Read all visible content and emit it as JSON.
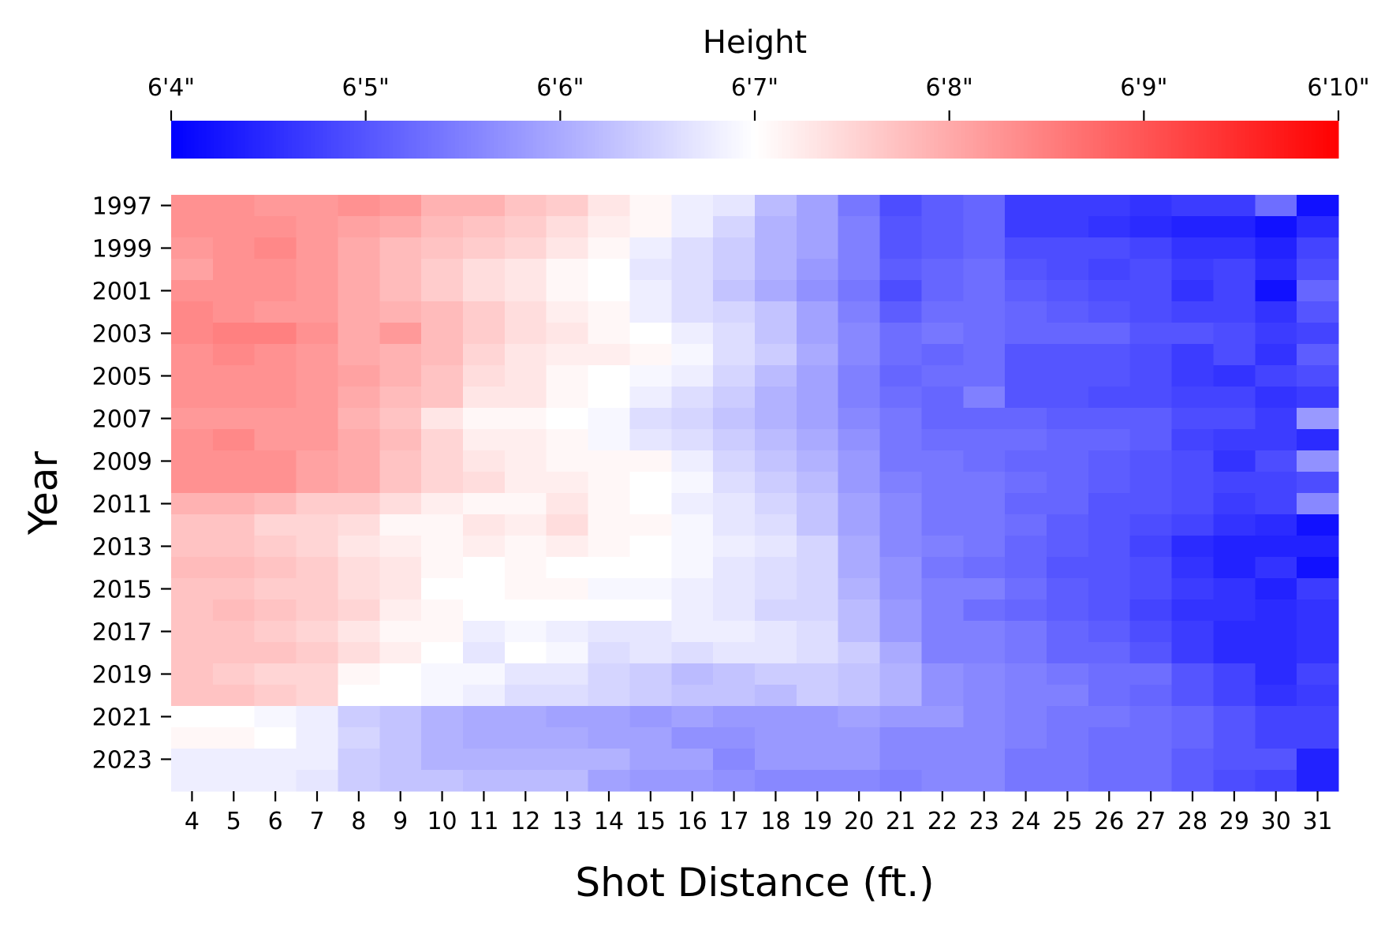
{
  "chart_data": {
    "type": "heatmap",
    "title": "",
    "xlabel": "Shot Distance (ft.)",
    "ylabel": "Year",
    "x": [
      4,
      5,
      6,
      7,
      8,
      9,
      10,
      11,
      12,
      13,
      14,
      15,
      16,
      17,
      18,
      19,
      20,
      21,
      22,
      23,
      24,
      25,
      26,
      27,
      28,
      29,
      30,
      31
    ],
    "x_ticks": [
      "4",
      "5",
      "6",
      "7",
      "8",
      "9",
      "10",
      "11",
      "12",
      "13",
      "14",
      "15",
      "16",
      "17",
      "18",
      "19",
      "20",
      "21",
      "22",
      "23",
      "24",
      "25",
      "26",
      "27",
      "28",
      "29",
      "30",
      "31"
    ],
    "y": [
      1997,
      1998,
      1999,
      2000,
      2001,
      2002,
      2003,
      2004,
      2005,
      2006,
      2007,
      2008,
      2009,
      2010,
      2011,
      2012,
      2013,
      2014,
      2015,
      2016,
      2017,
      2018,
      2019,
      2020,
      2021,
      2022,
      2023,
      2024
    ],
    "y_ticks": [
      "1997",
      "1999",
      "2001",
      "2003",
      "2005",
      "2007",
      "2009",
      "2011",
      "2013",
      "2015",
      "2017",
      "2019",
      "2021",
      "2023"
    ],
    "value_units": "height in inches",
    "colorbar": {
      "label": "Height",
      "min": 76,
      "center": 79,
      "max": 82,
      "ticks": [
        76,
        77,
        78,
        79,
        80,
        81,
        82
      ],
      "tick_labels": [
        "6'4\"",
        "6'5\"",
        "6'6\"",
        "6'7\"",
        "6'8\"",
        "6'9\"",
        "6'10\""
      ],
      "colors": {
        "low": "#0000ff",
        "mid": "#ffffff",
        "high": "#ff0000"
      }
    },
    "values": [
      [
        80.3,
        80.3,
        80.2,
        80.2,
        80.3,
        80.2,
        79.9,
        79.9,
        79.7,
        79.6,
        79.3,
        79.1,
        78.8,
        78.7,
        78.2,
        77.9,
        77.4,
        76.9,
        77.1,
        77.2,
        76.7,
        76.7,
        76.7,
        76.6,
        76.7,
        76.7,
        77.3,
        76.2
      ],
      [
        80.3,
        80.3,
        80.3,
        80.2,
        80.1,
        80.0,
        79.8,
        79.7,
        79.6,
        79.4,
        79.2,
        79.1,
        78.8,
        78.5,
        78.1,
        77.9,
        77.5,
        77.0,
        77.1,
        77.2,
        76.7,
        76.7,
        76.6,
        76.5,
        76.4,
        76.4,
        76.2,
        76.5
      ],
      [
        80.2,
        80.3,
        80.4,
        80.2,
        80.0,
        79.8,
        79.7,
        79.6,
        79.5,
        79.3,
        79.1,
        78.8,
        78.6,
        78.4,
        78.1,
        77.9,
        77.5,
        77.0,
        77.1,
        77.2,
        76.9,
        76.9,
        76.9,
        76.8,
        76.6,
        76.6,
        76.4,
        76.8
      ],
      [
        80.1,
        80.3,
        80.3,
        80.2,
        80.0,
        79.8,
        79.6,
        79.4,
        79.3,
        79.1,
        79.0,
        78.7,
        78.6,
        78.4,
        78.1,
        77.8,
        77.5,
        77.1,
        77.2,
        77.3,
        77.0,
        76.9,
        76.8,
        76.9,
        76.7,
        76.8,
        76.5,
        76.9
      ],
      [
        80.3,
        80.3,
        80.3,
        80.2,
        80.0,
        79.8,
        79.6,
        79.4,
        79.3,
        79.1,
        79.0,
        78.8,
        78.6,
        78.3,
        78.0,
        77.7,
        77.4,
        76.9,
        77.2,
        77.3,
        77.1,
        77.0,
        76.9,
        76.9,
        76.6,
        76.8,
        76.2,
        77.2
      ],
      [
        80.4,
        80.3,
        80.2,
        80.2,
        80.0,
        79.9,
        79.8,
        79.6,
        79.4,
        79.2,
        79.1,
        78.8,
        78.6,
        78.5,
        78.3,
        77.9,
        77.5,
        77.1,
        77.3,
        77.3,
        77.2,
        77.1,
        77.0,
        76.9,
        76.8,
        76.8,
        76.6,
        77.0
      ],
      [
        80.4,
        80.5,
        80.5,
        80.3,
        80.0,
        80.2,
        79.8,
        79.6,
        79.4,
        79.3,
        79.1,
        79.0,
        78.8,
        78.6,
        78.3,
        77.9,
        77.6,
        77.3,
        77.4,
        77.3,
        77.2,
        77.2,
        77.2,
        77.0,
        77.0,
        76.9,
        76.7,
        76.8
      ],
      [
        80.3,
        80.4,
        80.3,
        80.2,
        80.0,
        79.9,
        79.8,
        79.5,
        79.3,
        79.2,
        79.2,
        79.1,
        78.9,
        78.6,
        78.4,
        78.0,
        77.6,
        77.3,
        77.2,
        77.3,
        77.0,
        77.0,
        77.0,
        76.9,
        76.7,
        76.9,
        76.6,
        77.1
      ],
      [
        80.3,
        80.3,
        80.3,
        80.2,
        80.1,
        79.9,
        79.7,
        79.4,
        79.3,
        79.1,
        79.0,
        78.9,
        78.8,
        78.5,
        78.2,
        77.9,
        77.5,
        77.2,
        77.3,
        77.3,
        77.0,
        77.0,
        77.0,
        76.9,
        76.7,
        76.6,
        76.8,
        76.9
      ],
      [
        80.3,
        80.3,
        80.3,
        80.2,
        80.0,
        79.8,
        79.7,
        79.3,
        79.3,
        79.1,
        79.0,
        78.8,
        78.6,
        78.4,
        78.1,
        77.9,
        77.5,
        77.3,
        77.2,
        77.5,
        77.0,
        77.0,
        76.9,
        76.9,
        76.8,
        76.8,
        76.6,
        76.7
      ],
      [
        80.2,
        80.2,
        80.2,
        80.2,
        79.9,
        79.7,
        79.3,
        79.1,
        79.1,
        79.0,
        78.9,
        78.6,
        78.5,
        78.3,
        78.1,
        77.9,
        77.6,
        77.4,
        77.2,
        77.2,
        77.2,
        77.1,
        77.1,
        77.1,
        76.9,
        76.9,
        76.7,
        77.8
      ],
      [
        80.3,
        80.4,
        80.2,
        80.2,
        80.0,
        79.8,
        79.5,
        79.2,
        79.2,
        79.1,
        78.9,
        78.7,
        78.6,
        78.4,
        78.2,
        78.0,
        77.7,
        77.4,
        77.3,
        77.3,
        77.3,
        77.2,
        77.2,
        77.1,
        76.8,
        76.7,
        76.7,
        76.5
      ],
      [
        80.3,
        80.3,
        80.3,
        80.1,
        80.0,
        79.7,
        79.5,
        79.3,
        79.2,
        79.1,
        79.1,
        79.1,
        78.8,
        78.5,
        78.3,
        78.1,
        77.8,
        77.4,
        77.4,
        77.3,
        77.2,
        77.2,
        77.1,
        77.0,
        76.9,
        76.6,
        76.9,
        77.7
      ],
      [
        80.3,
        80.3,
        80.3,
        80.1,
        80.0,
        79.7,
        79.5,
        79.4,
        79.2,
        79.2,
        79.1,
        79.0,
        78.9,
        78.6,
        78.4,
        78.2,
        77.8,
        77.5,
        77.4,
        77.4,
        77.3,
        77.2,
        77.1,
        77.0,
        76.9,
        76.8,
        76.8,
        76.9
      ],
      [
        79.9,
        79.9,
        79.8,
        79.6,
        79.6,
        79.4,
        79.2,
        79.1,
        79.1,
        79.3,
        79.1,
        79.0,
        78.8,
        78.7,
        78.5,
        78.3,
        77.9,
        77.6,
        77.4,
        77.4,
        77.2,
        77.2,
        77.0,
        77.0,
        76.9,
        76.7,
        76.8,
        77.6
      ],
      [
        79.7,
        79.7,
        79.5,
        79.5,
        79.4,
        79.1,
        79.1,
        79.3,
        79.2,
        79.4,
        79.1,
        79.1,
        78.9,
        78.7,
        78.6,
        78.3,
        77.9,
        77.6,
        77.4,
        77.4,
        77.3,
        77.1,
        77.0,
        76.9,
        76.8,
        76.6,
        76.5,
        76.2
      ],
      [
        79.7,
        79.7,
        79.6,
        79.5,
        79.3,
        79.2,
        79.1,
        79.2,
        79.1,
        79.2,
        79.1,
        79.0,
        78.9,
        78.8,
        78.7,
        78.5,
        78.0,
        77.6,
        77.5,
        77.4,
        77.2,
        77.1,
        77.0,
        76.8,
        76.5,
        76.4,
        76.4,
        76.4
      ],
      [
        79.8,
        79.8,
        79.7,
        79.6,
        79.4,
        79.3,
        79.1,
        79.0,
        79.1,
        79.0,
        79.0,
        79.0,
        78.9,
        78.7,
        78.6,
        78.5,
        78.0,
        77.7,
        77.4,
        77.3,
        77.2,
        77.0,
        77.0,
        76.9,
        76.6,
        76.4,
        76.6,
        76.2
      ],
      [
        79.7,
        79.7,
        79.6,
        79.6,
        79.4,
        79.3,
        79.0,
        79.0,
        79.1,
        79.1,
        78.9,
        78.9,
        78.8,
        78.7,
        78.6,
        78.5,
        78.1,
        77.7,
        77.5,
        77.5,
        77.3,
        77.1,
        77.0,
        76.9,
        76.7,
        76.6,
        76.4,
        76.7
      ],
      [
        79.7,
        79.8,
        79.7,
        79.6,
        79.5,
        79.2,
        79.1,
        79.0,
        79.0,
        79.0,
        79.0,
        79.0,
        78.8,
        78.7,
        78.5,
        78.5,
        78.2,
        77.8,
        77.5,
        77.3,
        77.2,
        77.1,
        77.0,
        76.8,
        76.6,
        76.6,
        76.5,
        76.6
      ],
      [
        79.7,
        79.7,
        79.6,
        79.5,
        79.3,
        79.1,
        79.1,
        78.8,
        78.9,
        78.8,
        78.7,
        78.7,
        78.8,
        78.8,
        78.7,
        78.6,
        78.2,
        77.8,
        77.5,
        77.5,
        77.4,
        77.2,
        77.1,
        76.9,
        76.7,
        76.5,
        76.5,
        76.6
      ],
      [
        79.7,
        79.7,
        79.7,
        79.6,
        79.4,
        79.2,
        79.0,
        78.7,
        79.0,
        78.9,
        78.6,
        78.7,
        78.6,
        78.7,
        78.7,
        78.6,
        78.4,
        78.0,
        77.5,
        77.5,
        77.4,
        77.2,
        77.2,
        77.0,
        76.7,
        76.5,
        76.5,
        76.6
      ],
      [
        79.7,
        79.6,
        79.5,
        79.5,
        79.1,
        79.0,
        78.9,
        78.9,
        78.7,
        78.7,
        78.5,
        78.4,
        78.2,
        78.3,
        78.4,
        78.4,
        78.3,
        78.1,
        77.7,
        77.6,
        77.5,
        77.4,
        77.3,
        77.3,
        77.0,
        76.8,
        76.5,
        76.8
      ],
      [
        79.7,
        79.7,
        79.6,
        79.5,
        79.0,
        79.0,
        78.9,
        78.8,
        78.6,
        78.6,
        78.5,
        78.4,
        78.3,
        78.3,
        78.2,
        78.4,
        78.3,
        78.1,
        77.7,
        77.6,
        77.5,
        77.5,
        77.3,
        77.2,
        77.0,
        76.8,
        76.6,
        76.7
      ],
      [
        79.0,
        79.0,
        78.9,
        78.8,
        78.4,
        78.3,
        78.1,
        78.0,
        78.0,
        77.9,
        77.9,
        77.8,
        77.9,
        77.8,
        77.8,
        77.8,
        77.9,
        77.8,
        77.8,
        77.6,
        77.5,
        77.4,
        77.4,
        77.3,
        77.2,
        77.0,
        76.8,
        76.8
      ],
      [
        79.1,
        79.1,
        79.0,
        78.8,
        78.5,
        78.3,
        78.1,
        78.0,
        78.0,
        78.0,
        77.9,
        77.9,
        77.7,
        77.7,
        77.8,
        77.8,
        77.8,
        77.6,
        77.6,
        77.6,
        77.5,
        77.4,
        77.3,
        77.3,
        77.2,
        77.0,
        76.8,
        76.8
      ],
      [
        78.8,
        78.8,
        78.8,
        78.8,
        78.4,
        78.3,
        78.1,
        78.1,
        78.1,
        78.1,
        78.1,
        77.9,
        77.9,
        77.6,
        77.8,
        77.8,
        77.8,
        77.6,
        77.6,
        77.6,
        77.4,
        77.4,
        77.3,
        77.3,
        77.1,
        77.0,
        77.0,
        76.4
      ],
      [
        78.8,
        78.8,
        78.8,
        78.7,
        78.4,
        78.3,
        78.3,
        78.2,
        78.2,
        78.2,
        77.9,
        77.8,
        77.8,
        77.7,
        77.6,
        77.6,
        77.6,
        77.5,
        77.6,
        77.6,
        77.4,
        77.4,
        77.3,
        77.3,
        77.1,
        76.9,
        76.8,
        76.4
      ]
    ]
  }
}
